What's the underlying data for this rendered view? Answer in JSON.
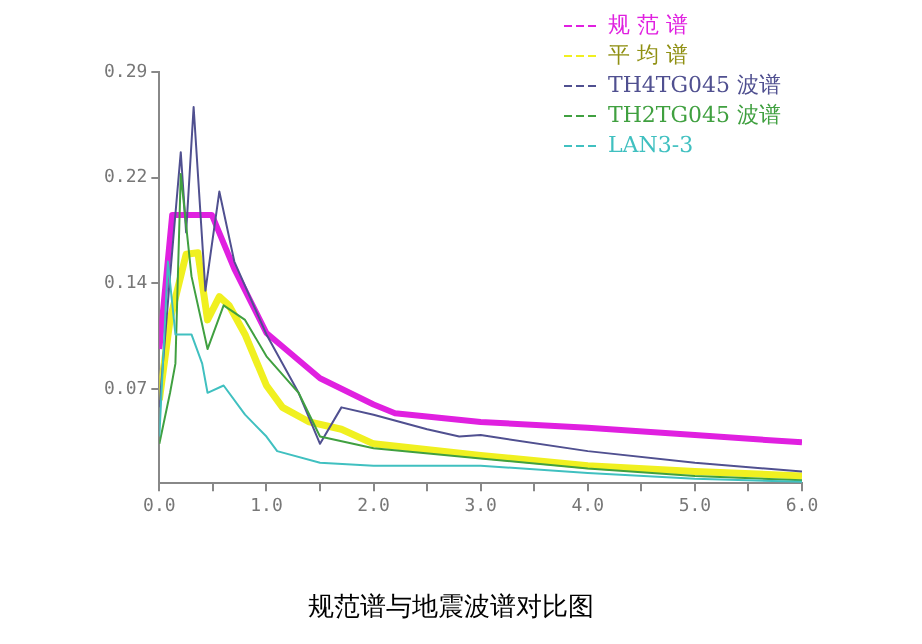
{
  "chart_data": {
    "type": "line",
    "title": "规范谱与地震波谱对比图",
    "legend": "top right",
    "marker": "none",
    "line_style": "solid",
    "grid": false,
    "xlim": [
      0,
      6
    ],
    "xticks": [
      {
        "value": 0,
        "label": "0.0"
      },
      {
        "value": 0.5,
        "label": null
      },
      {
        "value": 1,
        "label": "1.0"
      },
      {
        "value": 1.5,
        "label": null
      },
      {
        "value": 2,
        "label": "2.0"
      },
      {
        "value": 2.5,
        "label": null
      },
      {
        "value": 3,
        "label": "3.0"
      },
      {
        "value": 3.5,
        "label": null
      },
      {
        "value": 4,
        "label": "4.0"
      },
      {
        "value": 4.5,
        "label": null
      },
      {
        "value": 5,
        "label": "5.0"
      },
      {
        "value": 5.5,
        "label": null
      },
      {
        "value": 6,
        "label": "6.0"
      }
    ],
    "ylim": [
      0.008,
      0.29
    ],
    "yticks": [
      {
        "value": 0.0725,
        "label": "0.07"
      },
      {
        "value": 0.145,
        "label": "0.14"
      },
      {
        "value": 0.2175,
        "label": "0.22"
      },
      {
        "value": 0.29,
        "label": "0.29"
      }
    ],
    "series": [
      {
        "name": "规 范 谱",
        "color": "#e020e0",
        "x": [
          0,
          0.12,
          0.49,
          0.7,
          1.0,
          1.5,
          2.0,
          2.2,
          3.0,
          4.0,
          5.0,
          6.0
        ],
        "values": [
          0.1,
          0.192,
          0.192,
          0.155,
          0.111,
          0.08,
          0.062,
          0.056,
          0.05,
          0.046,
          0.041,
          0.036
        ]
      },
      {
        "name": "平 均 谱",
        "color": "#f0f020",
        "x": [
          0,
          0.1,
          0.25,
          0.36,
          0.45,
          0.56,
          0.65,
          0.8,
          1.0,
          1.15,
          1.4,
          1.7,
          2.0,
          3.0,
          4.0,
          5.0,
          6.0
        ],
        "values": [
          0.065,
          0.12,
          0.165,
          0.166,
          0.12,
          0.136,
          0.13,
          0.11,
          0.075,
          0.06,
          0.05,
          0.045,
          0.035,
          0.027,
          0.02,
          0.016,
          0.013
        ]
      },
      {
        "name": "TH4TG045 波谱",
        "color": "#505090",
        "x": [
          0,
          0.1,
          0.2,
          0.25,
          0.32,
          0.43,
          0.56,
          0.7,
          1.0,
          1.3,
          1.5,
          1.7,
          2.0,
          2.5,
          2.8,
          3.0,
          4.0,
          5.0,
          6.0
        ],
        "values": [
          0.06,
          0.15,
          0.235,
          0.18,
          0.266,
          0.14,
          0.208,
          0.16,
          0.11,
          0.07,
          0.035,
          0.06,
          0.055,
          0.045,
          0.04,
          0.041,
          0.03,
          0.022,
          0.016
        ]
      },
      {
        "name": "TH2TG045 波谱",
        "color": "#40a040",
        "x": [
          0,
          0.1,
          0.15,
          0.2,
          0.3,
          0.45,
          0.6,
          0.8,
          1.0,
          1.3,
          1.5,
          2.0,
          3.0,
          4.0,
          5.0,
          6.0
        ],
        "values": [
          0.035,
          0.07,
          0.09,
          0.22,
          0.15,
          0.1,
          0.13,
          0.12,
          0.095,
          0.07,
          0.04,
          0.032,
          0.025,
          0.018,
          0.013,
          0.01
        ]
      },
      {
        "name": "LAN3-3",
        "color": "#40c0c0",
        "x": [
          0,
          0.08,
          0.15,
          0.3,
          0.4,
          0.45,
          0.6,
          0.8,
          1.0,
          1.1,
          1.5,
          2.0,
          3.0,
          4.0,
          5.0,
          6.0
        ],
        "values": [
          0.04,
          0.16,
          0.11,
          0.11,
          0.09,
          0.07,
          0.075,
          0.055,
          0.04,
          0.03,
          0.022,
          0.02,
          0.02,
          0.015,
          0.011,
          0.009
        ]
      }
    ]
  }
}
